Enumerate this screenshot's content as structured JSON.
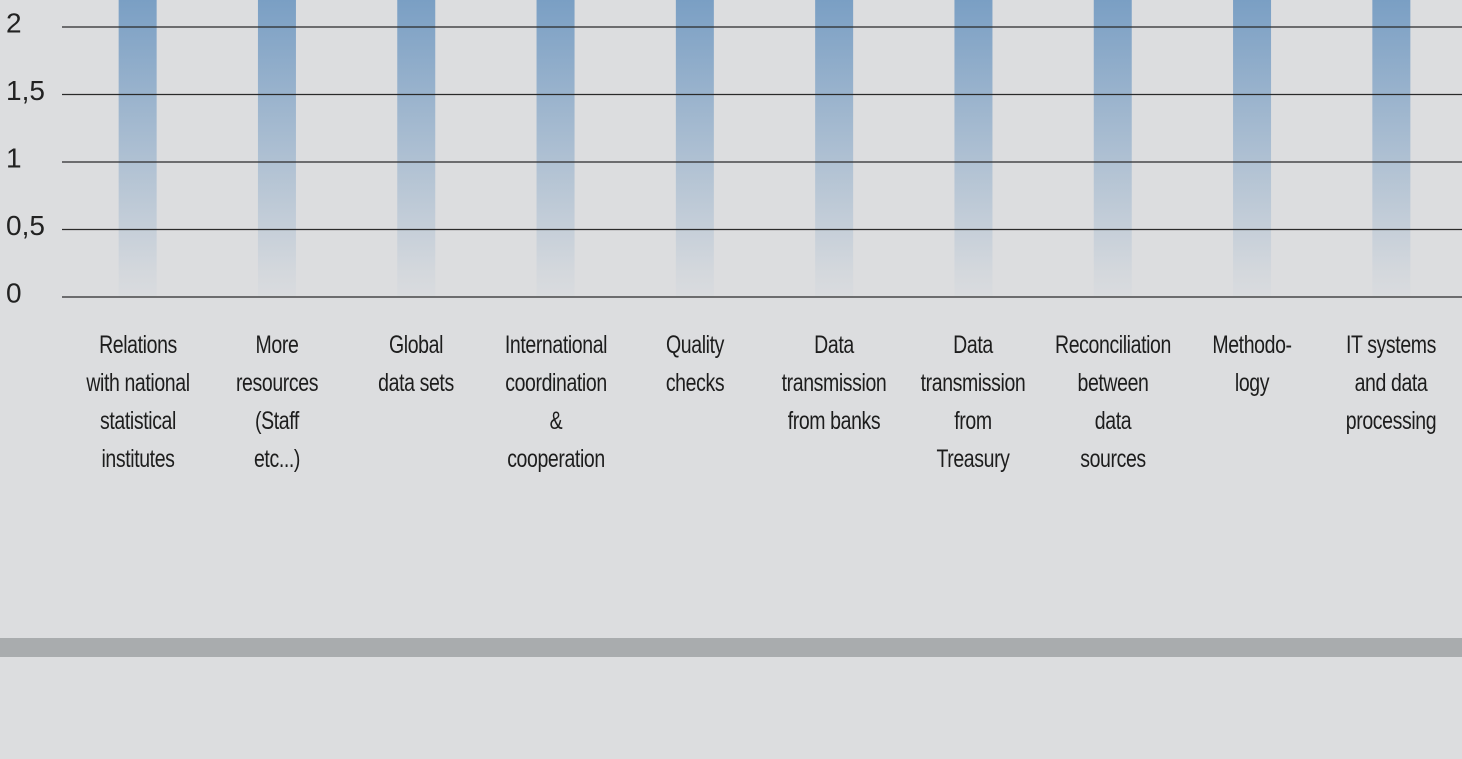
{
  "chart_data": {
    "type": "bar",
    "categories": [
      "Relations\nwith national\nstatistical\ninstitutes",
      "More\nresources\n(Staff\netc...)",
      "Global\ndata sets",
      "International\ncoordination\n&\ncooperation",
      "Quality\nchecks",
      "Data\ntransmission\nfrom banks",
      "Data\ntransmission\nfrom\nTreasury",
      "Reconciliation\nbetween\ndata\nsources",
      "Methodo-\nlogy",
      "IT systems\nand data\nprocessing"
    ],
    "values": [
      2.2,
      2.2,
      2.2,
      2.2,
      2.2,
      2.2,
      2.2,
      2.2,
      2.2,
      2.2
    ],
    "color": "#7a9fc4",
    "ylim": [
      0,
      2.2
    ],
    "yticks": [
      0,
      {
        "value": 0.5,
        "label": "0,5"
      },
      1,
      {
        "value": 1.5,
        "label": "1,5"
      },
      2
    ],
    "grid": true
  }
}
